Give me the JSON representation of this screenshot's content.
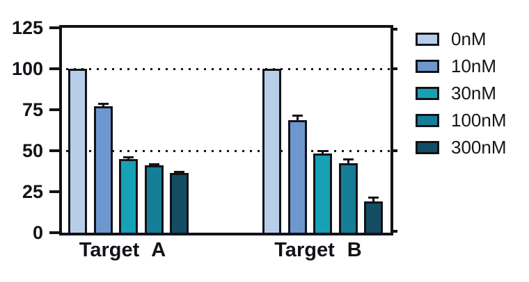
{
  "chart_data": {
    "type": "bar",
    "title": "",
    "xlabel": "",
    "ylabel": "",
    "categories": [
      "Target A",
      "Target B"
    ],
    "series": [
      {
        "name": "0nM",
        "color": "#b7cee9",
        "values": [
          100,
          100
        ],
        "errors": [
          0,
          0
        ]
      },
      {
        "name": "10nM",
        "color": "#6e97d0",
        "values": [
          77,
          68.5
        ],
        "errors": [
          2,
          3
        ]
      },
      {
        "name": "30nM",
        "color": "#17a1b6",
        "values": [
          45,
          48.5
        ],
        "errors": [
          1,
          1.5
        ]
      },
      {
        "name": "100nM",
        "color": "#157e97",
        "values": [
          41,
          42.5
        ],
        "errors": [
          1,
          2.5
        ]
      },
      {
        "name": "300nM",
        "color": "#134d63",
        "values": [
          36.5,
          19
        ],
        "errors": [
          1,
          2.5
        ]
      }
    ],
    "ylim": [
      0,
      125
    ],
    "yticks": [
      0,
      25,
      50,
      75,
      100,
      125
    ],
    "dotted_gridlines_at": [
      100,
      50
    ],
    "right_ticks_at": [
      125,
      100,
      50,
      0
    ],
    "legend_position": "right",
    "grid": "dotted-horizontal",
    "axis_color": "#121218",
    "background_color": "#ffffff"
  }
}
